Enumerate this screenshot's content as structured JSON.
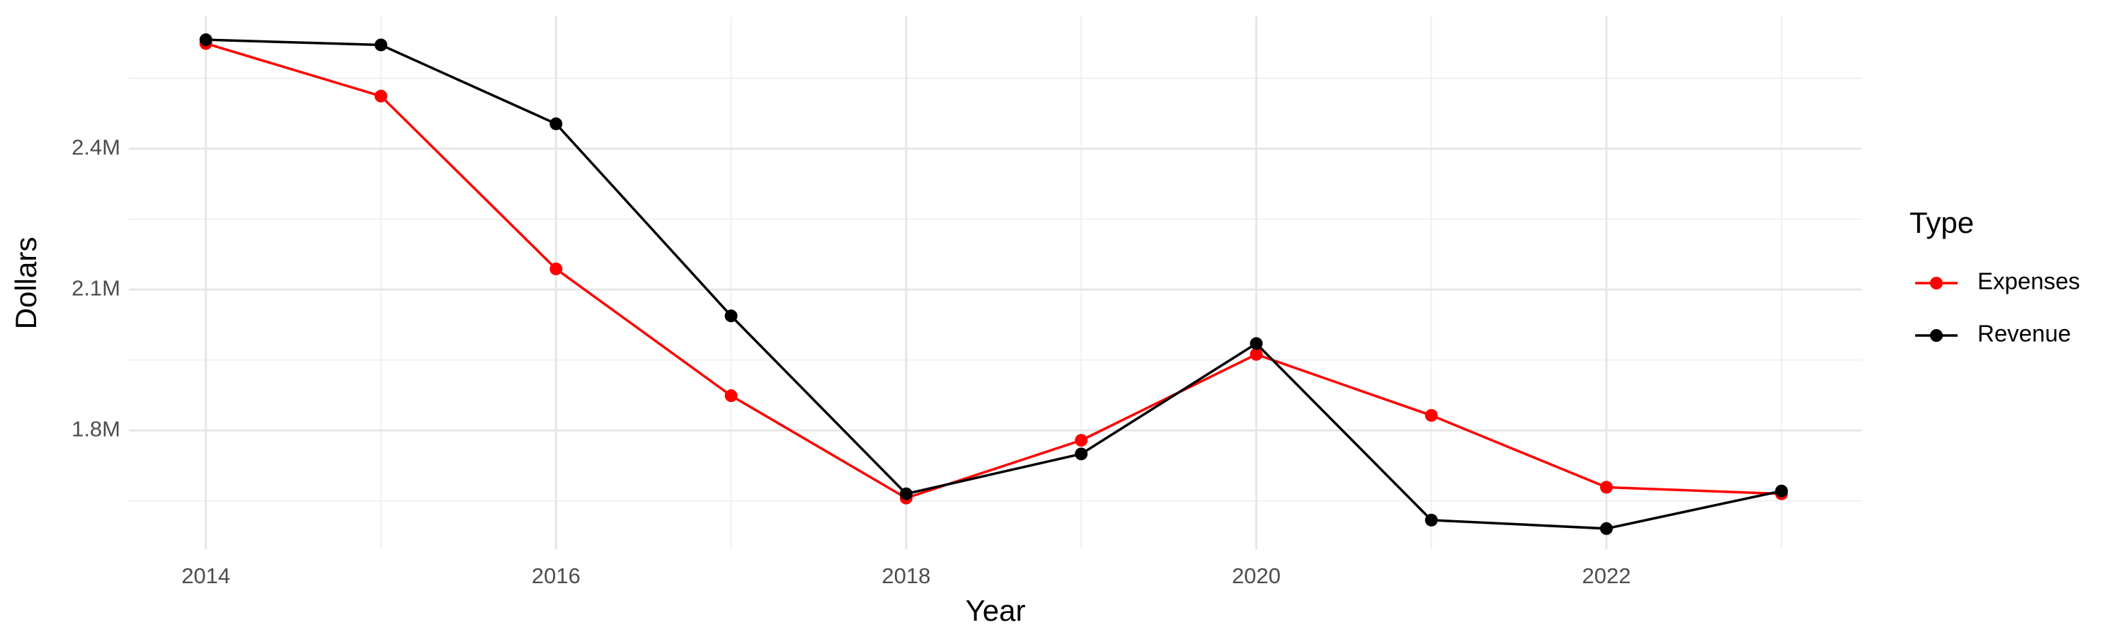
{
  "chart_data": {
    "type": "line",
    "x_label": "Year",
    "y_label": "Dollars",
    "legend_title": "Type",
    "legend": "right",
    "grid": true,
    "x": [
      2014,
      2015,
      2016,
      2017,
      2018,
      2019,
      2020,
      2021,
      2022,
      2023
    ],
    "series": [
      {
        "name": "Expenses",
        "color": "#ff0000",
        "values": [
          2624000,
          2512000,
          2144000,
          1874000,
          1656000,
          1779000,
          1962000,
          1832000,
          1679000,
          1665000
        ]
      },
      {
        "name": "Revenue",
        "color": "#000000",
        "values": [
          2632000,
          2621000,
          2453000,
          2044000,
          1665000,
          1750000,
          1985000,
          1609000,
          1591000,
          1671000
        ]
      }
    ],
    "xlim": [
      2013.56,
      2023.46
    ],
    "xticks": [
      2014,
      2016,
      2018,
      2020,
      2022
    ],
    "ylim": [
      1547000,
      2682000
    ],
    "yticks": [
      {
        "value": 1800000,
        "label": "1.8M"
      },
      {
        "value": 2100000,
        "label": "2.1M"
      },
      {
        "value": 2400000,
        "label": "2.4M"
      }
    ]
  }
}
